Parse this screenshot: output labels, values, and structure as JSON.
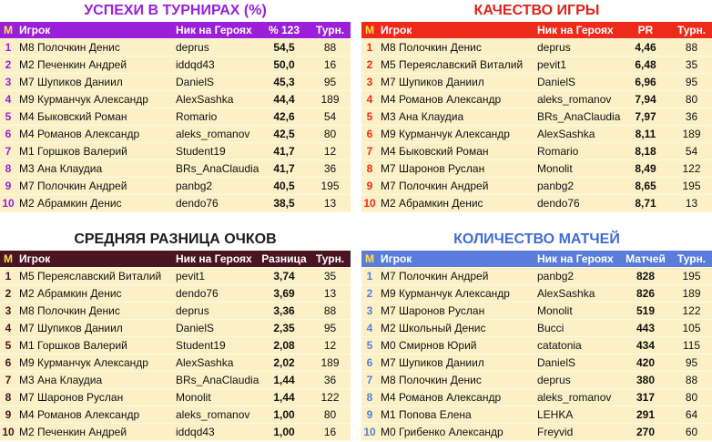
{
  "panels": [
    {
      "title": "УСПЕХИ В ТУРНИРАХ (%)",
      "headers": [
        "М",
        "Игрок",
        "Ник на Героях",
        "% 123",
        "Турн."
      ],
      "rows": [
        [
          "1",
          "М8 Полочкин Денис",
          "deprus",
          "54,5",
          "88"
        ],
        [
          "2",
          "М2 Печенкин Андрей",
          "iddqd43",
          "50,0",
          "16"
        ],
        [
          "3",
          "М7 Шупиков Даниил",
          "DanielS",
          "45,3",
          "95"
        ],
        [
          "4",
          "М9 Курманчук Александр",
          "AlexSashka",
          "44,4",
          "189"
        ],
        [
          "5",
          "М4 Быковский Роман",
          "Romario",
          "42,6",
          "54"
        ],
        [
          "6",
          "М4 Романов Александр",
          "aleks_romanov",
          "42,5",
          "80"
        ],
        [
          "7",
          "М1 Горшков Валерий",
          "Student19",
          "41,7",
          "12"
        ],
        [
          "8",
          "М3 Ана Клаудиа",
          "BRs_AnaClaudia",
          "41,7",
          "36"
        ],
        [
          "9",
          "М7 Полочкин Андрей",
          "panbg2",
          "40,5",
          "195"
        ],
        [
          "10",
          "М2 Абрамкин Денис",
          "dendo76",
          "38,5",
          "13"
        ]
      ]
    },
    {
      "title": "КАЧЕСТВО ИГРЫ",
      "headers": [
        "М",
        "Игрок",
        "Ник на Героях",
        "PR",
        "Турн."
      ],
      "rows": [
        [
          "1",
          "М8 Полочкин Денис",
          "deprus",
          "4,46",
          "88"
        ],
        [
          "2",
          "М5 Переяславский Виталий",
          "pevit1",
          "6,48",
          "35"
        ],
        [
          "3",
          "М7 Шупиков Даниил",
          "DanielS",
          "6,96",
          "95"
        ],
        [
          "4",
          "М4 Романов Александр",
          "aleks_romanov",
          "7,94",
          "80"
        ],
        [
          "5",
          "М3 Ана Клаудиа",
          "BRs_AnaClaudia",
          "7,97",
          "36"
        ],
        [
          "6",
          "М9 Курманчук Александр",
          "AlexSashka",
          "8,11",
          "189"
        ],
        [
          "7",
          "М4 Быковский Роман",
          "Romario",
          "8,18",
          "54"
        ],
        [
          "8",
          "М7 Шаронов Руслан",
          "Monolit",
          "8,49",
          "122"
        ],
        [
          "9",
          "М7 Полочкин Андрей",
          "panbg2",
          "8,65",
          "195"
        ],
        [
          "10",
          "М2 Абрамкин Денис",
          "dendo76",
          "8,71",
          "13"
        ]
      ]
    },
    {
      "title": "СРЕДНЯЯ РАЗНИЦА ОЧКОВ",
      "headers": [
        "М",
        "Игрок",
        "Ник на Героях",
        "Разница",
        "Турн."
      ],
      "rows": [
        [
          "1",
          "М5 Переяславский Виталий",
          "pevit1",
          "3,74",
          "35"
        ],
        [
          "2",
          "М2 Абрамкин Денис",
          "dendo76",
          "3,69",
          "13"
        ],
        [
          "3",
          "М8 Полочкин Денис",
          "deprus",
          "3,36",
          "88"
        ],
        [
          "4",
          "М7 Шупиков Даниил",
          "DanielS",
          "2,35",
          "95"
        ],
        [
          "5",
          "М1 Горшков Валерий",
          "Student19",
          "2,08",
          "12"
        ],
        [
          "6",
          "М9 Курманчук Александр",
          "AlexSashka",
          "2,02",
          "189"
        ],
        [
          "7",
          "М3 Ана Клаудиа",
          "BRs_AnaClaudia",
          "1,44",
          "36"
        ],
        [
          "8",
          "М7 Шаронов Руслан",
          "Monolit",
          "1,44",
          "122"
        ],
        [
          "9",
          "М4 Романов Александр",
          "aleks_romanov",
          "1,00",
          "80"
        ],
        [
          "10",
          "М2 Печенкин Андрей",
          "iddqd43",
          "1,00",
          "16"
        ]
      ]
    },
    {
      "title": "КОЛИЧЕСТВО МАТЧЕЙ",
      "headers": [
        "М",
        "Игрок",
        "Ник на Героях",
        "Матчей",
        "Турн."
      ],
      "rows": [
        [
          "1",
          "М7 Полочкин Андрей",
          "panbg2",
          "828",
          "195"
        ],
        [
          "2",
          "М9 Курманчук Александр",
          "AlexSashka",
          "826",
          "189"
        ],
        [
          "3",
          "М7 Шаронов Руслан",
          "Monolit",
          "519",
          "122"
        ],
        [
          "4",
          "М2 Школьный Денис",
          "Bucci",
          "443",
          "105"
        ],
        [
          "5",
          "М0 Смирнов Юрий",
          "catatonia",
          "434",
          "115"
        ],
        [
          "6",
          "М7 Шупиков Даниил",
          "DanielS",
          "420",
          "95"
        ],
        [
          "7",
          "М8 Полочкин Денис",
          "deprus",
          "380",
          "88"
        ],
        [
          "8",
          "М4 Романов Александр",
          "aleks_romanov",
          "317",
          "80"
        ],
        [
          "9",
          "М1 Попова Елена",
          "LEHKA",
          "291",
          "64"
        ],
        [
          "10",
          "М0 Грибенко Александр",
          "Freyvid",
          "270",
          "60"
        ]
      ]
    }
  ]
}
